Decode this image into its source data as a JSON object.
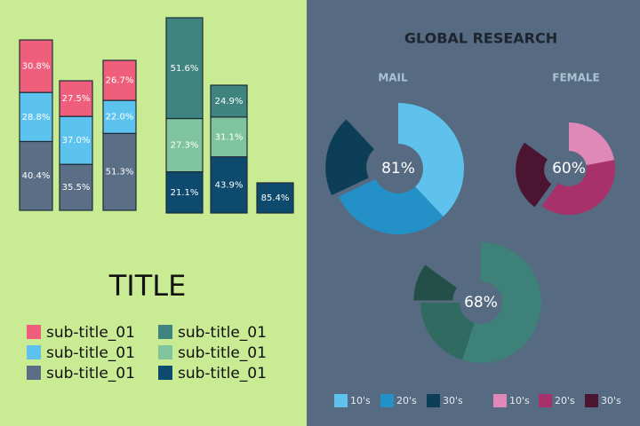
{
  "title": "TITLE",
  "bar_groups": [
    {
      "stacks": [
        [
          30.8,
          28.8,
          40.4
        ],
        [
          27.5,
          37.0,
          35.5
        ],
        [
          26.7,
          22.0,
          51.3
        ]
      ],
      "value_labels": [
        [
          "30.8%",
          "28.8%",
          "40.4%"
        ],
        [
          "27.5%",
          "37.0%",
          "35.5%"
        ],
        [
          "26.7%",
          "22.0%",
          "51.3%"
        ]
      ],
      "colors": [
        "#ef5f7c",
        "#5cc3ef",
        "#5a6e85"
      ]
    },
    {
      "stacks": [
        [
          51.6,
          27.3,
          21.1
        ],
        [
          24.9,
          31.1,
          43.9
        ],
        [
          85.4
        ]
      ],
      "value_labels": [
        [
          "51.6%",
          "27.3%",
          "21.1%"
        ],
        [
          "24.9%",
          "31.1%",
          "43.9%"
        ],
        [
          "85.4%"
        ]
      ],
      "colors": [
        "#3f847e",
        "#7fc49c",
        "#0e4a6e"
      ]
    }
  ],
  "legend": [
    {
      "label": "sub-title_01",
      "color": "#ef5f7c"
    },
    {
      "label": "sub-title_01",
      "color": "#5cc3ef"
    },
    {
      "label": "sub-title_01",
      "color": "#5a6e85"
    },
    {
      "label": "sub-title_01",
      "color": "#3f847e"
    },
    {
      "label": "sub-title_01",
      "color": "#7fc49c"
    },
    {
      "label": "sub-title_01",
      "color": "#0e4a6e"
    }
  ],
  "research": {
    "title": "GLOBAL RESEARCH",
    "donuts": [
      {
        "label": "MAIL",
        "center_value": 81,
        "center_label": "81%",
        "values": [
          38,
          30,
          20
        ],
        "colors": [
          "#5ec2ec",
          "#2390c8",
          "#0d3e58"
        ]
      },
      {
        "label": "FEMALE",
        "center_value": 60,
        "center_label": "60%",
        "values": [
          22,
          38,
          25
        ],
        "colors": [
          "#e089b8",
          "#a8316b",
          "#4b1430"
        ]
      },
      {
        "center_value": 68,
        "center_label": "68%",
        "values": [
          55,
          20,
          10
        ],
        "colors": [
          "#3d8178",
          "#2f6b61",
          "#244e48"
        ]
      }
    ],
    "legend": [
      {
        "label": "10's",
        "color": "#5ec2ec"
      },
      {
        "label": "20's",
        "color": "#2390c8"
      },
      {
        "label": "30's",
        "color": "#0d3e58"
      },
      {
        "label": "10's",
        "color": "#e089b8"
      },
      {
        "label": "20's",
        "color": "#a8316b"
      },
      {
        "label": "30's",
        "color": "#4b1430"
      }
    ]
  }
}
